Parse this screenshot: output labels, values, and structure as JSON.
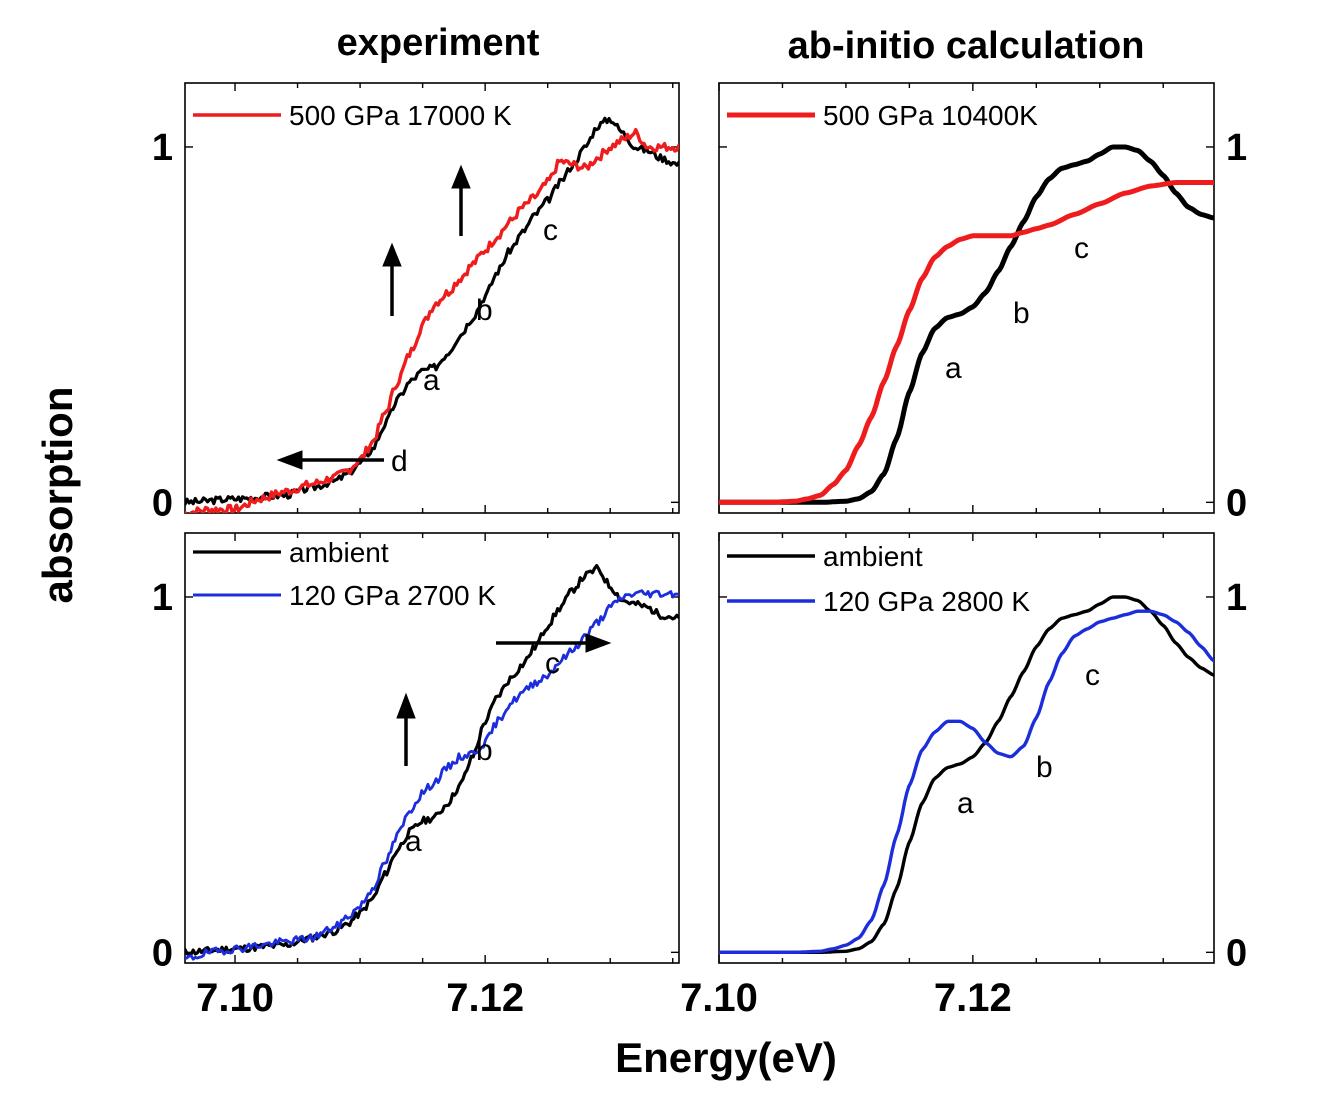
{
  "figure": {
    "left_title": "experiment",
    "right_title": "ab-initio calculation",
    "ylabel": "absorption",
    "xlabel": "Energy(eV)"
  },
  "chart_data": [
    {
      "type": "line",
      "panel": "top-left",
      "xlim": [
        7.096,
        7.1355
      ],
      "ylim": [
        -0.03,
        1.18
      ],
      "xticks": [
        7.1,
        7.12
      ],
      "xtick_labels": [],
      "yticks": [
        0,
        1
      ],
      "ytick_labels": [
        "0",
        "1"
      ],
      "ytick_side": "left",
      "legend": "top-left",
      "series": [
        {
          "name": "",
          "color": "#000000",
          "width": 3.2,
          "noise": 0.01,
          "seed": 3,
          "x": [
            7.096,
            7.1,
            7.104,
            7.106,
            7.108,
            7.109,
            7.11,
            7.111,
            7.112,
            7.113,
            7.114,
            7.115,
            7.116,
            7.117,
            7.118,
            7.119,
            7.12,
            7.121,
            7.122,
            7.123,
            7.124,
            7.125,
            7.126,
            7.127,
            7.128,
            7.129,
            7.13,
            7.131,
            7.132,
            7.133,
            7.134,
            7.1355
          ],
          "y": [
            0.0,
            0.01,
            0.02,
            0.04,
            0.06,
            0.08,
            0.11,
            0.15,
            0.22,
            0.29,
            0.34,
            0.37,
            0.38,
            0.42,
            0.47,
            0.52,
            0.58,
            0.65,
            0.71,
            0.76,
            0.81,
            0.85,
            0.9,
            0.95,
            1.0,
            1.06,
            1.08,
            1.04,
            1.0,
            0.99,
            0.97,
            0.95
          ]
        },
        {
          "name": "500 GPa 17000 K",
          "color": "#ee1c1c",
          "width": 3.4,
          "noise": 0.012,
          "seed": 7,
          "x": [
            7.096,
            7.098,
            7.1,
            7.102,
            7.104,
            7.106,
            7.108,
            7.109,
            7.11,
            7.111,
            7.112,
            7.113,
            7.114,
            7.115,
            7.116,
            7.117,
            7.118,
            7.119,
            7.12,
            7.121,
            7.122,
            7.123,
            7.124,
            7.125,
            7.126,
            7.127,
            7.128,
            7.129,
            7.13,
            7.131,
            7.132,
            7.133,
            7.134,
            7.1355
          ],
          "y": [
            -0.03,
            -0.02,
            -0.02,
            0.01,
            0.03,
            0.05,
            0.07,
            0.09,
            0.12,
            0.17,
            0.25,
            0.34,
            0.42,
            0.5,
            0.56,
            0.59,
            0.63,
            0.67,
            0.71,
            0.75,
            0.79,
            0.83,
            0.86,
            0.9,
            0.96,
            0.95,
            0.94,
            0.97,
            1.0,
            1.02,
            1.04,
            1.0,
            1.0,
            1.0
          ]
        }
      ],
      "annotations": [
        "a",
        "b",
        "c",
        "d"
      ]
    },
    {
      "type": "line",
      "panel": "top-right",
      "xlim": [
        7.1,
        7.139
      ],
      "ylim": [
        -0.03,
        1.18
      ],
      "xticks": [
        7.1,
        7.12
      ],
      "xtick_labels": [],
      "yticks": [
        0,
        1
      ],
      "ytick_labels": [
        "0",
        "1"
      ],
      "ytick_side": "right",
      "legend": "top-left",
      "series": [
        {
          "name": "",
          "color": "#000000",
          "width": 5,
          "noise": 0,
          "seed": 0,
          "x": [
            7.1,
            7.106,
            7.108,
            7.11,
            7.111,
            7.112,
            7.113,
            7.114,
            7.115,
            7.116,
            7.117,
            7.118,
            7.119,
            7.12,
            7.121,
            7.122,
            7.123,
            7.124,
            7.125,
            7.126,
            7.127,
            7.128,
            7.129,
            7.13,
            7.131,
            7.132,
            7.133,
            7.134,
            7.135,
            7.136,
            7.137,
            7.138,
            7.139
          ],
          "y": [
            0,
            0,
            0,
            0.003,
            0.01,
            0.03,
            0.08,
            0.18,
            0.31,
            0.42,
            0.49,
            0.52,
            0.53,
            0.55,
            0.59,
            0.65,
            0.72,
            0.79,
            0.86,
            0.91,
            0.94,
            0.95,
            0.96,
            0.98,
            1.0,
            1.0,
            0.99,
            0.96,
            0.92,
            0.87,
            0.83,
            0.81,
            0.8
          ]
        },
        {
          "name": "500 GPa 10400K",
          "color": "#ee1c1c",
          "width": 5,
          "noise": 0,
          "seed": 0,
          "x": [
            7.1,
            7.104,
            7.106,
            7.107,
            7.108,
            7.109,
            7.11,
            7.111,
            7.112,
            7.113,
            7.114,
            7.115,
            7.116,
            7.117,
            7.118,
            7.119,
            7.12,
            7.121,
            7.122,
            7.123,
            7.124,
            7.125,
            7.126,
            7.128,
            7.13,
            7.132,
            7.134,
            7.136,
            7.139
          ],
          "y": [
            0,
            0,
            0.003,
            0.01,
            0.02,
            0.05,
            0.09,
            0.16,
            0.24,
            0.34,
            0.44,
            0.54,
            0.63,
            0.69,
            0.72,
            0.74,
            0.75,
            0.75,
            0.75,
            0.75,
            0.76,
            0.77,
            0.78,
            0.81,
            0.84,
            0.87,
            0.89,
            0.9,
            0.9
          ]
        }
      ],
      "annotations": [
        "a",
        "b",
        "c"
      ]
    },
    {
      "type": "line",
      "panel": "bottom-left",
      "xlim": [
        7.096,
        7.1355
      ],
      "ylim": [
        -0.03,
        1.18
      ],
      "xticks": [
        7.1,
        7.12
      ],
      "xtick_labels": [
        "7.10",
        "7.12"
      ],
      "yticks": [
        0,
        1
      ],
      "ytick_labels": [
        "0",
        "1"
      ],
      "ytick_side": "left",
      "legend": "top-left",
      "series": [
        {
          "name": "ambient",
          "color": "#000000",
          "width": 3.2,
          "noise": 0.01,
          "seed": 11,
          "x": [
            7.096,
            7.1,
            7.104,
            7.106,
            7.108,
            7.109,
            7.11,
            7.111,
            7.112,
            7.113,
            7.114,
            7.115,
            7.116,
            7.117,
            7.118,
            7.119,
            7.12,
            7.121,
            7.122,
            7.123,
            7.124,
            7.125,
            7.126,
            7.127,
            7.128,
            7.129,
            7.13,
            7.131,
            7.132,
            7.133,
            7.134,
            7.1355
          ],
          "y": [
            0.0,
            0.01,
            0.02,
            0.04,
            0.06,
            0.08,
            0.11,
            0.15,
            0.22,
            0.29,
            0.34,
            0.37,
            0.38,
            0.42,
            0.47,
            0.55,
            0.65,
            0.72,
            0.77,
            0.81,
            0.86,
            0.92,
            0.97,
            1.02,
            1.06,
            1.08,
            1.03,
            0.99,
            0.98,
            0.97,
            0.95,
            0.94
          ]
        },
        {
          "name": "120 GPa 2700 K",
          "color": "#1c2ddb",
          "width": 2.8,
          "noise": 0.011,
          "seed": 19,
          "x": [
            7.096,
            7.098,
            7.1,
            7.102,
            7.104,
            7.106,
            7.108,
            7.109,
            7.11,
            7.111,
            7.112,
            7.113,
            7.114,
            7.115,
            7.116,
            7.117,
            7.118,
            7.119,
            7.12,
            7.121,
            7.122,
            7.123,
            7.124,
            7.125,
            7.126,
            7.127,
            7.128,
            7.129,
            7.13,
            7.131,
            7.132,
            7.133,
            7.134,
            7.1355
          ],
          "y": [
            -0.02,
            0.0,
            0.01,
            0.02,
            0.03,
            0.04,
            0.07,
            0.1,
            0.13,
            0.18,
            0.25,
            0.33,
            0.4,
            0.45,
            0.48,
            0.52,
            0.55,
            0.56,
            0.59,
            0.65,
            0.7,
            0.73,
            0.76,
            0.78,
            0.82,
            0.85,
            0.89,
            0.93,
            0.97,
            1.0,
            1.01,
            1.01,
            1.01,
            1.01
          ]
        }
      ],
      "annotations": [
        "a",
        "b",
        "c"
      ]
    },
    {
      "type": "line",
      "panel": "bottom-right",
      "xlim": [
        7.1,
        7.139
      ],
      "ylim": [
        -0.03,
        1.18
      ],
      "xticks": [
        7.1,
        7.12
      ],
      "xtick_labels": [
        "7.10",
        "7.12"
      ],
      "yticks": [
        0,
        1
      ],
      "ytick_labels": [
        "0",
        "1"
      ],
      "ytick_side": "right",
      "legend": "top-left",
      "series": [
        {
          "name": "ambient",
          "color": "#000000",
          "width": 3.4,
          "noise": 0,
          "seed": 0,
          "x": [
            7.1,
            7.106,
            7.108,
            7.11,
            7.111,
            7.112,
            7.113,
            7.114,
            7.115,
            7.116,
            7.117,
            7.118,
            7.119,
            7.12,
            7.121,
            7.122,
            7.123,
            7.124,
            7.125,
            7.126,
            7.127,
            7.128,
            7.129,
            7.13,
            7.131,
            7.132,
            7.133,
            7.134,
            7.135,
            7.136,
            7.137,
            7.138,
            7.139
          ],
          "y": [
            0,
            0,
            0,
            0.003,
            0.01,
            0.03,
            0.08,
            0.18,
            0.31,
            0.42,
            0.49,
            0.52,
            0.53,
            0.55,
            0.59,
            0.65,
            0.72,
            0.79,
            0.86,
            0.91,
            0.94,
            0.95,
            0.96,
            0.98,
            1.0,
            1.0,
            0.99,
            0.96,
            0.92,
            0.87,
            0.83,
            0.8,
            0.78
          ]
        },
        {
          "name": "120 GPa 2800 K",
          "color": "#1c2ddb",
          "width": 3.4,
          "noise": 0,
          "seed": 0,
          "x": [
            7.1,
            7.106,
            7.108,
            7.109,
            7.11,
            7.111,
            7.112,
            7.113,
            7.114,
            7.115,
            7.116,
            7.117,
            7.118,
            7.119,
            7.12,
            7.121,
            7.122,
            7.123,
            7.124,
            7.125,
            7.126,
            7.127,
            7.128,
            7.129,
            7.13,
            7.131,
            7.132,
            7.133,
            7.134,
            7.135,
            7.136,
            7.137,
            7.138,
            7.139
          ],
          "y": [
            0,
            0,
            0.003,
            0.01,
            0.02,
            0.04,
            0.09,
            0.19,
            0.33,
            0.47,
            0.57,
            0.62,
            0.65,
            0.65,
            0.63,
            0.59,
            0.56,
            0.55,
            0.58,
            0.66,
            0.76,
            0.84,
            0.89,
            0.91,
            0.93,
            0.94,
            0.95,
            0.96,
            0.96,
            0.95,
            0.93,
            0.9,
            0.86,
            0.82
          ]
        }
      ],
      "annotations": [
        "a",
        "b",
        "c"
      ]
    }
  ]
}
